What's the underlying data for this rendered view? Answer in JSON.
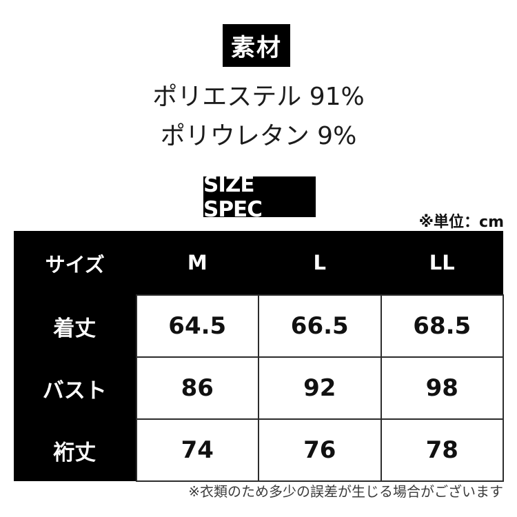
{
  "material_section": {
    "heading": "素材",
    "lines": [
      "ポリエステル 91%",
      "ポリウレタン 9%"
    ]
  },
  "size_section": {
    "heading": "SIZE SPEC",
    "unit_note": "※単位：cm"
  },
  "size_table": {
    "header": [
      "サイズ",
      "M",
      "L",
      "LL"
    ],
    "rows": [
      {
        "label": "着丈",
        "values": [
          "64.5",
          "66.5",
          "68.5"
        ]
      },
      {
        "label": "バスト",
        "values": [
          "86",
          "92",
          "98"
        ]
      },
      {
        "label": "裄丈",
        "values": [
          "74",
          "76",
          "78"
        ]
      }
    ]
  },
  "footnote": "※衣類のため多少の誤差が生じる場合がございます",
  "colors": {
    "heading_bg": "#000000",
    "heading_text": "#ffffff",
    "body_text": "#1c1c1c",
    "table_border": "#2b2b2b",
    "footnote_text": "#3c3c3c"
  }
}
